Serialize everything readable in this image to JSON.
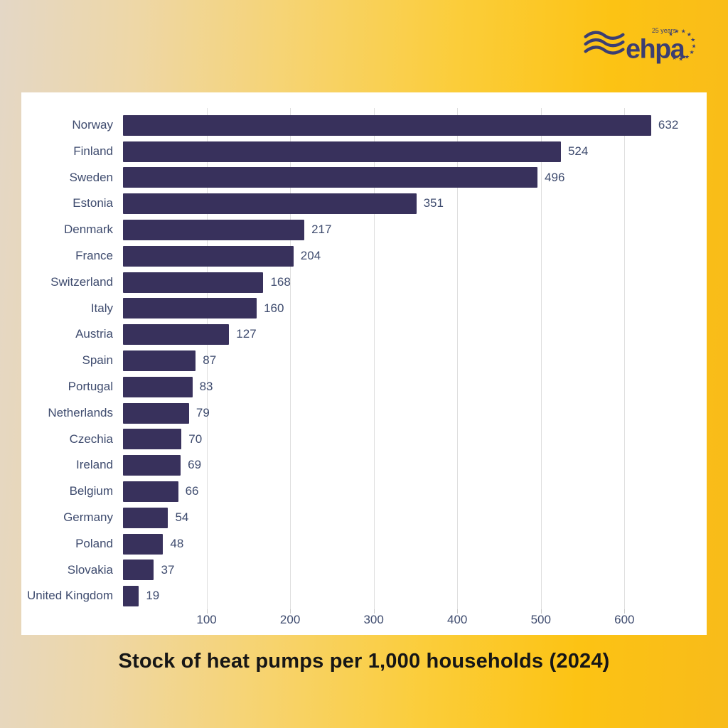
{
  "logo": {
    "brand": "ehpa",
    "tagline": "25 years",
    "star_glyph": "★",
    "color": "#3b3e72"
  },
  "chart_data": {
    "type": "bar",
    "orientation": "horizontal",
    "title": "Stock of heat pumps per 1,000 households (2024)",
    "categories": [
      "Norway",
      "Finland",
      "Sweden",
      "Estonia",
      "Denmark",
      "France",
      "Switzerland",
      "Italy",
      "Austria",
      "Spain",
      "Portugal",
      "Netherlands",
      "Czechia",
      "Ireland",
      "Belgium",
      "Germany",
      "Poland",
      "Slovakia",
      "United Kingdom"
    ],
    "values": [
      632,
      524,
      496,
      351,
      217,
      204,
      168,
      160,
      127,
      87,
      83,
      79,
      70,
      69,
      66,
      54,
      48,
      37,
      19
    ],
    "x_ticks": [
      100,
      200,
      300,
      400,
      500,
      600
    ],
    "xlim": [
      0,
      680
    ],
    "grid": true,
    "legend": false,
    "bar_color": "#38315c",
    "label_color": "#3e4b6e",
    "gridline_color": "#dedede",
    "panel_color": "#ffffff",
    "title_color": "#161616",
    "background_left": "#e4d7c6",
    "background_right": "#f8bb1a"
  }
}
